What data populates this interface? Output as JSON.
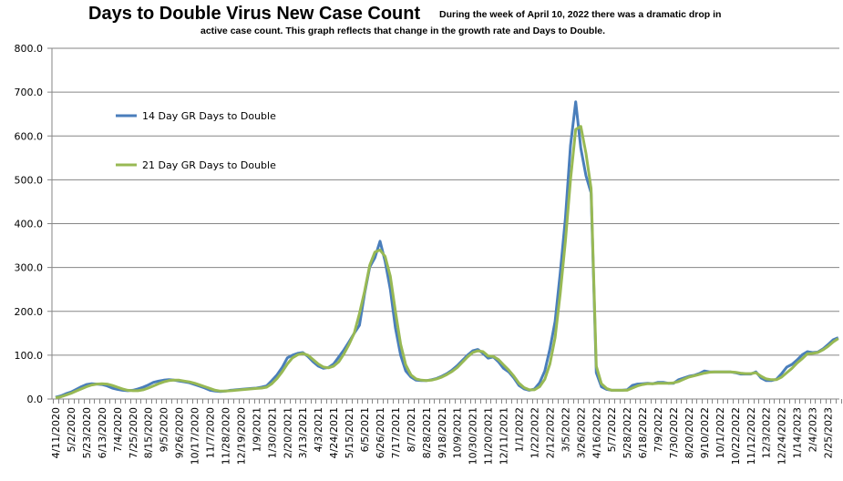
{
  "chart_data": {
    "type": "line",
    "title": "Days to Double Virus New Case Count",
    "subtitle_line1": "During the week of April 10, 2022 there was a dramatic drop in",
    "subtitle_line2": "active case count.  This graph reflects that change in the growth rate and Days to Double.",
    "xlabel": "",
    "ylabel": "",
    "ylim": [
      0,
      800
    ],
    "yticks": [
      "0.0",
      "100.0",
      "200.0",
      "300.0",
      "400.0",
      "500.0",
      "600.0",
      "700.0",
      "800.0"
    ],
    "grid": true,
    "legend_position": "upper-left-inside",
    "x_start": "4/11/2020",
    "x_interval": "weekly",
    "x_tick_every": 3,
    "x_tick_labels": [
      "4/11/2020",
      "5/2/2020",
      "5/23/2020",
      "6/13/2020",
      "7/4/2020",
      "7/25/2020",
      "8/15/2020",
      "9/5/2020",
      "9/26/2020",
      "10/17/2020",
      "11/7/2020",
      "11/28/2020",
      "12/19/2020",
      "1/9/2021",
      "1/30/2021",
      "2/20/2021",
      "3/13/2021",
      "4/3/2021",
      "4/24/2021",
      "5/15/2021",
      "6/5/2021",
      "6/26/2021",
      "7/17/2021",
      "8/7/2021",
      "8/28/2021",
      "9/18/2021",
      "10/9/2021",
      "10/30/2021",
      "11/20/2021",
      "12/11/2021",
      "1/1/2022",
      "1/22/2022",
      "2/12/2022",
      "3/5/2022",
      "3/26/2022",
      "4/16/2022",
      "5/7/2022",
      "5/28/2022",
      "6/18/2022",
      "7/9/2022",
      "7/30/2022",
      "8/20/2022",
      "9/10/2022",
      "10/1/2022",
      "10/22/2022",
      "11/12/2022",
      "12/3/2022",
      "12/24/2022",
      "1/14/2023",
      "2/4/2023",
      "2/25/2023"
    ],
    "series": [
      {
        "name": "14 Day GR Days to Double",
        "color": "#4a7ebb",
        "values": [
          4,
          7,
          12,
          16,
          22,
          28,
          33,
          35,
          34,
          33,
          30,
          25,
          22,
          20,
          19,
          20,
          23,
          27,
          32,
          38,
          41,
          43,
          44,
          43,
          41,
          39,
          37,
          33,
          29,
          25,
          20,
          18,
          17,
          18,
          20,
          21,
          22,
          23,
          24,
          25,
          27,
          30,
          42,
          55,
          72,
          94,
          100,
          104,
          106,
          97,
          85,
          75,
          70,
          72,
          80,
          96,
          112,
          131,
          150,
          168,
          240,
          301,
          322,
          360,
          314,
          250,
          162,
          100,
          64,
          50,
          43,
          42,
          42,
          44,
          47,
          52,
          58,
          66,
          76,
          88,
          100,
          110,
          113,
          104,
          93,
          96,
          85,
          70,
          62,
          48,
          31,
          23,
          20,
          23,
          37,
          64,
          114,
          177,
          287,
          412,
          578,
          678,
          572,
          509,
          470,
          60,
          28,
          22,
          20,
          20,
          20,
          21,
          31,
          34,
          35,
          36,
          35,
          38,
          38,
          36,
          36,
          44,
          48,
          52,
          54,
          58,
          64,
          62,
          62,
          62,
          62,
          62,
          60,
          57,
          57,
          57,
          62,
          48,
          42,
          42,
          45,
          58,
          73,
          79,
          89,
          101,
          108,
          106,
          107,
          114,
          124,
          135,
          140
        ]
      },
      {
        "name": "21 Day GR Days to Double",
        "color": "#98b954",
        "values": [
          3,
          5,
          9,
          13,
          18,
          23,
          28,
          32,
          34,
          35,
          34,
          31,
          27,
          23,
          20,
          19,
          19,
          21,
          25,
          30,
          35,
          39,
          42,
          43,
          43,
          41,
          39,
          36,
          32,
          28,
          24,
          20,
          18,
          18,
          19,
          20,
          21,
          22,
          23,
          24,
          25,
          27,
          35,
          47,
          62,
          80,
          94,
          101,
          104,
          100,
          90,
          80,
          73,
          71,
          75,
          85,
          103,
          125,
          150,
          195,
          245,
          305,
          335,
          340,
          325,
          280,
          200,
          125,
          78,
          55,
          46,
          43,
          42,
          43,
          46,
          50,
          56,
          63,
          72,
          84,
          96,
          106,
          110,
          108,
          98,
          97,
          90,
          78,
          66,
          52,
          36,
          26,
          21,
          21,
          28,
          45,
          80,
          140,
          240,
          360,
          500,
          615,
          622,
          560,
          480,
          75,
          35,
          24,
          20,
          20,
          20,
          20,
          25,
          30,
          33,
          35,
          35,
          36,
          36,
          36,
          37,
          40,
          45,
          50,
          53,
          56,
          59,
          61,
          62,
          62,
          62,
          62,
          61,
          59,
          58,
          58,
          60,
          52,
          46,
          44,
          44,
          50,
          60,
          70,
          82,
          92,
          103,
          104,
          106,
          112,
          120,
          130,
          138
        ]
      }
    ]
  }
}
